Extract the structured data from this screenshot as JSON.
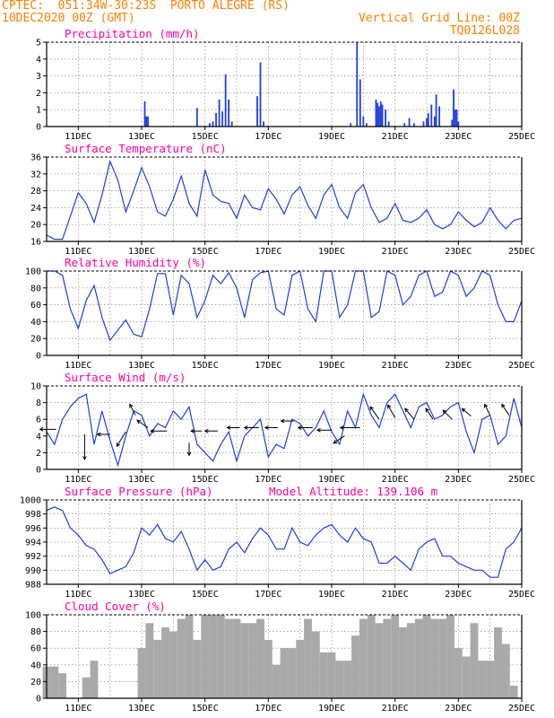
{
  "header": {
    "line1": "CPTEC:  051:34W-30:23S  PORTO ALEGRE (RS)",
    "line2": "10DEC2020 00Z (GMT)",
    "right1": "Vertical Grid Line: 00Z",
    "right2": "TQ0126L028"
  },
  "colors": {
    "header": "#ff7f00",
    "title": "#ff00a0",
    "series": "#1f3fe0",
    "cloud": "#a9a9a9"
  },
  "x_labels": [
    "11DEC",
    "13DEC",
    "15DEC",
    "17DEC",
    "19DEC",
    "21DEC",
    "23DEC",
    "25DEC"
  ],
  "chart_data": [
    {
      "type": "bar",
      "title": "Precipitation (mm/h)",
      "x_range": [
        10,
        25
      ],
      "ylim": [
        0,
        5
      ],
      "yticks": [
        0,
        1,
        2,
        3,
        4,
        5
      ],
      "points": [
        [
          13.1,
          1.5
        ],
        [
          13.15,
          0.6
        ],
        [
          13.2,
          0.6
        ],
        [
          14.75,
          1.1
        ],
        [
          15.15,
          0.2
        ],
        [
          15.25,
          0.3
        ],
        [
          15.35,
          0.8
        ],
        [
          15.45,
          1.6
        ],
        [
          15.55,
          0.9
        ],
        [
          15.65,
          3.1
        ],
        [
          15.75,
          1.6
        ],
        [
          15.85,
          0.3
        ],
        [
          16.65,
          1.8
        ],
        [
          16.75,
          3.8
        ],
        [
          16.85,
          0.3
        ],
        [
          19.6,
          0.2
        ],
        [
          19.8,
          5.0
        ],
        [
          19.9,
          2.8
        ],
        [
          20.0,
          0.6
        ],
        [
          20.1,
          0.2
        ],
        [
          20.4,
          1.6
        ],
        [
          20.45,
          1.4
        ],
        [
          20.5,
          1.2
        ],
        [
          20.55,
          1.5
        ],
        [
          20.6,
          1.3
        ],
        [
          20.7,
          1.0
        ],
        [
          20.8,
          0.3
        ],
        [
          21.3,
          0.2
        ],
        [
          21.45,
          0.5
        ],
        [
          21.6,
          0.2
        ],
        [
          21.9,
          0.3
        ],
        [
          22.0,
          0.5
        ],
        [
          22.05,
          0.8
        ],
        [
          22.15,
          1.3
        ],
        [
          22.25,
          0.6
        ],
        [
          22.3,
          1.9
        ],
        [
          22.4,
          1.2
        ],
        [
          22.8,
          0.4
        ],
        [
          22.85,
          2.2
        ],
        [
          22.9,
          1.0
        ],
        [
          22.95,
          1.0
        ],
        [
          23.0,
          0.3
        ]
      ]
    },
    {
      "type": "line",
      "title": "Surface Temperature (nC)",
      "x_range": [
        10,
        25
      ],
      "ylim": [
        16,
        36
      ],
      "yticks": [
        16,
        20,
        24,
        28,
        32,
        36
      ],
      "x": [
        10,
        10.25,
        10.5,
        10.75,
        11,
        11.25,
        11.5,
        11.75,
        12,
        12.25,
        12.5,
        12.75,
        13,
        13.25,
        13.5,
        13.75,
        14,
        14.25,
        14.5,
        14.75,
        15,
        15.25,
        15.5,
        15.75,
        16,
        16.25,
        16.5,
        16.75,
        17,
        17.25,
        17.5,
        17.75,
        18,
        18.25,
        18.5,
        18.75,
        19,
        19.25,
        19.5,
        19.75,
        20,
        20.25,
        20.5,
        20.75,
        21,
        21.25,
        21.5,
        21.75,
        22,
        22.25,
        22.5,
        22.75,
        23,
        23.25,
        23.5,
        23.75,
        24,
        24.25,
        24.5,
        24.75,
        25
      ],
      "y": [
        17.5,
        16.5,
        16.5,
        22,
        27.5,
        25,
        20.5,
        27,
        35,
        30.5,
        23,
        28,
        33.5,
        29,
        23,
        22,
        26,
        31.5,
        25,
        22,
        33,
        27,
        25.5,
        25,
        21.5,
        27,
        24,
        23.5,
        28.5,
        26,
        22.5,
        27,
        29,
        24.5,
        21.5,
        27,
        29.5,
        24,
        21.5,
        27.5,
        29.5,
        24,
        20.5,
        21.5,
        25,
        21,
        20.5,
        21.5,
        23.5,
        20,
        19,
        20,
        23,
        21,
        19.5,
        20.5,
        24,
        21,
        19,
        21,
        21.5
      ]
    },
    {
      "type": "line",
      "title": "Relative Humidity (%)",
      "x_range": [
        10,
        25
      ],
      "ylim": [
        0,
        100
      ],
      "yticks": [
        0,
        20,
        40,
        60,
        80,
        100
      ],
      "x": [
        10,
        10.25,
        10.5,
        10.75,
        11,
        11.25,
        11.5,
        11.75,
        12,
        12.25,
        12.5,
        12.75,
        13,
        13.25,
        13.5,
        13.75,
        14,
        14.25,
        14.5,
        14.75,
        15,
        15.25,
        15.5,
        15.75,
        16,
        16.25,
        16.5,
        16.75,
        17,
        17.25,
        17.5,
        17.75,
        18,
        18.25,
        18.5,
        18.75,
        19,
        19.25,
        19.5,
        19.75,
        20,
        20.25,
        20.5,
        20.75,
        21,
        21.25,
        21.5,
        21.75,
        22,
        22.25,
        22.5,
        22.75,
        23,
        23.25,
        23.5,
        23.75,
        24,
        24.25,
        24.5,
        24.75,
        25
      ],
      "y": [
        100,
        100,
        95,
        55,
        32,
        65,
        83,
        45,
        18,
        30,
        42,
        25,
        22,
        55,
        97,
        97,
        48,
        95,
        85,
        45,
        65,
        95,
        85,
        98,
        80,
        45,
        90,
        98,
        100,
        55,
        48,
        95,
        100,
        55,
        40,
        100,
        100,
        45,
        60,
        100,
        100,
        45,
        52,
        100,
        95,
        60,
        70,
        95,
        100,
        70,
        75,
        100,
        95,
        70,
        80,
        100,
        95,
        60,
        40,
        40,
        65
      ]
    },
    {
      "type": "line",
      "title": "Surface Wind (m/s)",
      "x_range": [
        10,
        25
      ],
      "ylim": [
        0,
        10
      ],
      "yticks": [
        0,
        2,
        4,
        6,
        8,
        10
      ],
      "x": [
        10,
        10.25,
        10.5,
        10.75,
        11,
        11.25,
        11.5,
        11.75,
        12,
        12.25,
        12.5,
        12.75,
        13,
        13.25,
        13.5,
        13.75,
        14,
        14.25,
        14.5,
        14.75,
        15,
        15.25,
        15.5,
        15.75,
        16,
        16.25,
        16.5,
        16.75,
        17,
        17.25,
        17.5,
        17.75,
        18,
        18.25,
        18.5,
        18.75,
        19,
        19.25,
        19.5,
        19.75,
        20,
        20.25,
        20.5,
        20.75,
        21,
        21.25,
        21.5,
        21.75,
        22,
        22.25,
        22.5,
        22.75,
        23,
        23.25,
        23.5,
        23.75,
        24,
        24.25,
        24.5,
        24.75,
        25
      ],
      "y": [
        4.5,
        3,
        6,
        7.5,
        8.5,
        9,
        3,
        7,
        3.5,
        0.5,
        4,
        7,
        6.5,
        4,
        5.5,
        5,
        7,
        6,
        7.5,
        3,
        2,
        1,
        3,
        4.5,
        1,
        4,
        5,
        6,
        1.5,
        3,
        2.5,
        6,
        5.5,
        4,
        5,
        7,
        4.5,
        3,
        7,
        5,
        9,
        6.5,
        5,
        8,
        9,
        7,
        5,
        7.5,
        8,
        6,
        6.5,
        7.5,
        8,
        4.5,
        2,
        6,
        6.5,
        3,
        4,
        8.5,
        5
      ]
    },
    {
      "type": "line",
      "title": "Surface Pressure (hPa)",
      "annotation": "Model Altitude: 139.106 m",
      "x_range": [
        10,
        25
      ],
      "ylim": [
        988,
        1000
      ],
      "yticks": [
        988,
        990,
        992,
        994,
        996,
        998,
        1000
      ],
      "x": [
        10,
        10.25,
        10.5,
        10.75,
        11,
        11.25,
        11.5,
        11.75,
        12,
        12.25,
        12.5,
        12.75,
        13,
        13.25,
        13.5,
        13.75,
        14,
        14.25,
        14.5,
        14.75,
        15,
        15.25,
        15.5,
        15.75,
        16,
        16.25,
        16.5,
        16.75,
        17,
        17.25,
        17.5,
        17.75,
        18,
        18.25,
        18.5,
        18.75,
        19,
        19.25,
        19.5,
        19.75,
        20,
        20.25,
        20.5,
        20.75,
        21,
        21.25,
        21.5,
        21.75,
        22,
        22.25,
        22.5,
        22.75,
        23,
        23.25,
        23.5,
        23.75,
        24,
        24.25,
        24.5,
        24.75,
        25
      ],
      "y": [
        998.5,
        999,
        998.5,
        996,
        995,
        993.5,
        993,
        991.5,
        989.5,
        990,
        990.5,
        992.5,
        996,
        995,
        996.5,
        994.5,
        994,
        995.5,
        993,
        990,
        991.5,
        990,
        990.5,
        993,
        994,
        992.5,
        994.5,
        996,
        995,
        993,
        993,
        996,
        994,
        993.5,
        995,
        996,
        996.5,
        995,
        994,
        996,
        994.5,
        994,
        991,
        991,
        992,
        991,
        990,
        993,
        994,
        994.5,
        992,
        992,
        991,
        990.5,
        990,
        990,
        989,
        989,
        993,
        994,
        996
      ]
    },
    {
      "type": "bar",
      "title": "Cloud Cover (%)",
      "x_range": [
        10,
        25
      ],
      "ylim": [
        0,
        100
      ],
      "yticks": [
        0,
        20,
        40,
        60,
        80,
        100
      ],
      "x": [
        10,
        10.25,
        10.5,
        10.75,
        11,
        11.25,
        11.5,
        11.75,
        12,
        12.25,
        12.5,
        12.75,
        13,
        13.25,
        13.5,
        13.75,
        14,
        14.25,
        14.5,
        14.75,
        15,
        15.25,
        15.5,
        15.75,
        16,
        16.25,
        16.5,
        16.75,
        17,
        17.25,
        17.5,
        17.75,
        18,
        18.25,
        18.5,
        18.75,
        19,
        19.25,
        19.5,
        19.75,
        20,
        20.25,
        20.5,
        20.75,
        21,
        21.25,
        21.5,
        21.75,
        22,
        22.25,
        22.5,
        22.75,
        23,
        23.25,
        23.5,
        23.75,
        24,
        24.25,
        24.5,
        24.75,
        25
      ],
      "values": [
        38,
        38,
        30,
        0,
        0,
        25,
        45,
        0,
        0,
        0,
        0,
        0,
        60,
        90,
        70,
        85,
        80,
        95,
        100,
        70,
        100,
        100,
        100,
        95,
        95,
        90,
        90,
        95,
        70,
        40,
        60,
        60,
        70,
        95,
        80,
        55,
        55,
        45,
        45,
        75,
        95,
        100,
        90,
        95,
        100,
        85,
        90,
        95,
        100,
        95,
        95,
        100,
        60,
        50,
        90,
        45,
        45,
        85,
        65,
        15,
        0
      ]
    }
  ]
}
